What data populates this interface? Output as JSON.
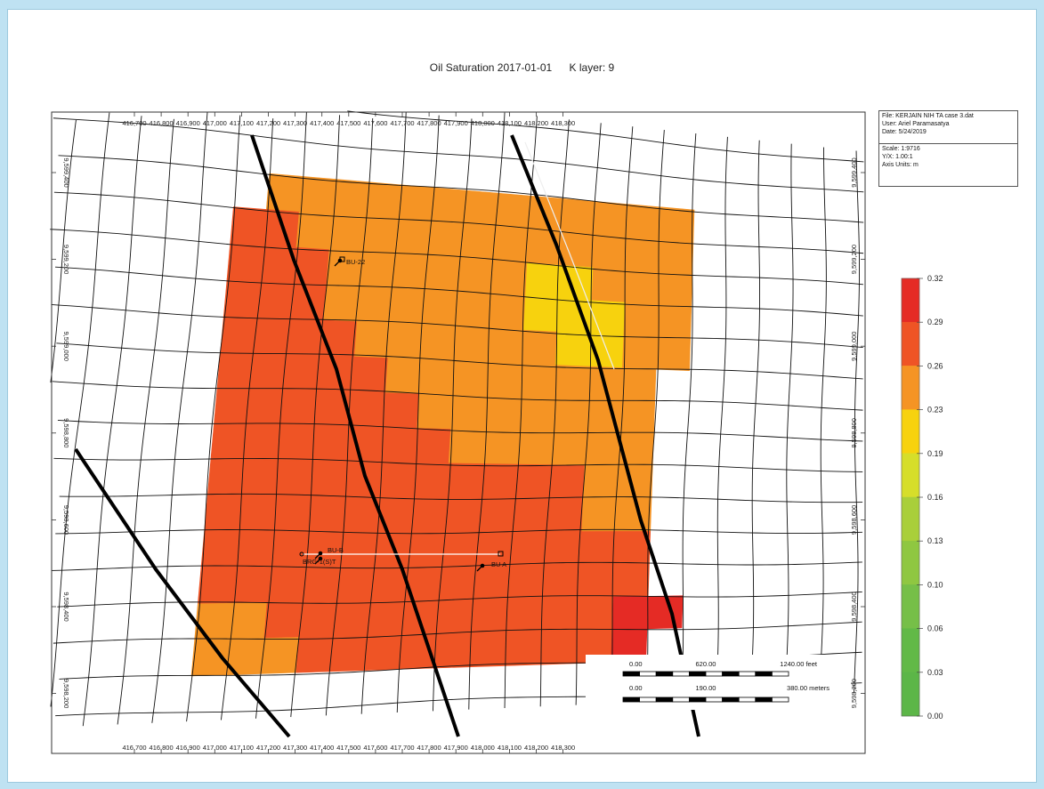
{
  "title": {
    "main": "Oil Saturation 2017-01-01",
    "layer": "K layer: 9"
  },
  "info_box": {
    "file": "File: KERJAIN NIH TA case 3.dat",
    "user": "User:  Ariel Paramasatya",
    "date": "Date: 5/24/2019",
    "scale": "Scale: 1:9716",
    "yx": "Y/X: 1.00:1",
    "axis_units": "Axis Units: m"
  },
  "scale_bar": {
    "feet": [
      "0.00",
      "620.00",
      "1240.00 feet"
    ],
    "meters": [
      "0.00",
      "190.00",
      "380.00 meters"
    ]
  },
  "chart_data": {
    "type": "heatmap",
    "property": "Oil Saturation",
    "date": "2017-01-01",
    "k_layer": 9,
    "x_ticks": [
      "416,700",
      "416,800",
      "416,900",
      "417,000",
      "417,100",
      "417,200",
      "417,300",
      "417,400",
      "417,500",
      "417,600",
      "417,700",
      "417,800",
      "417,900",
      "418,000",
      "418,100",
      "418,200",
      "418,300"
    ],
    "y_ticks": [
      "9,599,400",
      "9,599,200",
      "9,599,000",
      "9,598,800",
      "9,598,600",
      "9,598,400",
      "9,598,200"
    ],
    "colorbar": {
      "labels": [
        "0.32",
        "0.29",
        "0.26",
        "0.23",
        "0.19",
        "0.16",
        "0.13",
        "0.10",
        "0.06",
        "0.03",
        "0.00"
      ],
      "colors": [
        "#e52b25",
        "#ef5425",
        "#f59424",
        "#f7d20e",
        "#d6de2a",
        "#a9cf3a",
        "#8fc741",
        "#76bf48",
        "#62b947",
        "#5cb648"
      ],
      "range": [
        0.0,
        0.32
      ]
    },
    "wells": [
      {
        "label": "BU-22",
        "x": 417160,
        "y": 9599200
      },
      {
        "label": "BU-B",
        "x": 417120,
        "y": 9598560
      },
      {
        "label": "BRG-1(S)T",
        "x": 417100,
        "y": 9598550
      },
      {
        "label": "BU A",
        "x": 417490,
        "y": 9598500
      }
    ],
    "grid": {
      "rows": 14,
      "cols": 14,
      "cells": [
        "-AAAAAAAAAAAAA",
        "OOAAAAAAAAAAAA",
        "OOOAAAAAAYYAAA",
        "OOOAAAAAAYYYAA",
        "OOOOAAAAAAYYAA",
        "OOOOOAAAAAAAA-",
        "OOOOOOAAAAAAA-",
        "OOOOOOOAAAAAA-",
        "OOOOOOOOOOOAA-",
        "OOOOOOOOOOOAA-",
        "OOOOOOOOOOOOO-",
        "OOOOOOOOOOOOO-",
        "AAOOOOOOOOOORR",
        "AAAOOOOOOOOOR-"
      ]
    }
  }
}
